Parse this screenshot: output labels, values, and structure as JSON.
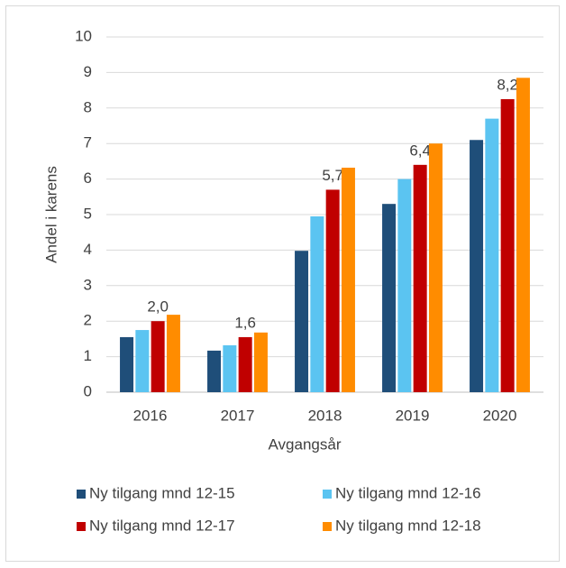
{
  "chart_data": {
    "type": "bar",
    "x_label": "Avgangsår",
    "y_label": "Andel i karens",
    "categories": [
      "2016",
      "2017",
      "2018",
      "2019",
      "2020"
    ],
    "series": [
      {
        "name": "Ny tilgang mnd 12-15",
        "color": "#1f4e79",
        "values": [
          1.55,
          1.17,
          3.98,
          5.3,
          7.1
        ]
      },
      {
        "name": "Ny tilgang mnd 12-16",
        "color": "#5bc4f1",
        "values": [
          1.75,
          1.32,
          4.95,
          6.0,
          7.7
        ]
      },
      {
        "name": "Ny tilgang mnd 12-17",
        "color": "#c00000",
        "values": [
          2.0,
          1.55,
          5.7,
          6.4,
          8.25
        ],
        "value_labels": [
          "2,0",
          "1,6",
          "5,7",
          "6,4",
          "8,2"
        ]
      },
      {
        "name": "Ny tilgang mnd 12-18",
        "color": "#ff8c00",
        "values": [
          2.18,
          1.68,
          6.32,
          7.0,
          8.85
        ]
      }
    ],
    "ylim": [
      0,
      10
    ],
    "yticks": [
      0,
      1,
      2,
      3,
      4,
      5,
      6,
      7,
      8,
      9,
      10
    ],
    "grid": true,
    "legend": "bottom"
  }
}
